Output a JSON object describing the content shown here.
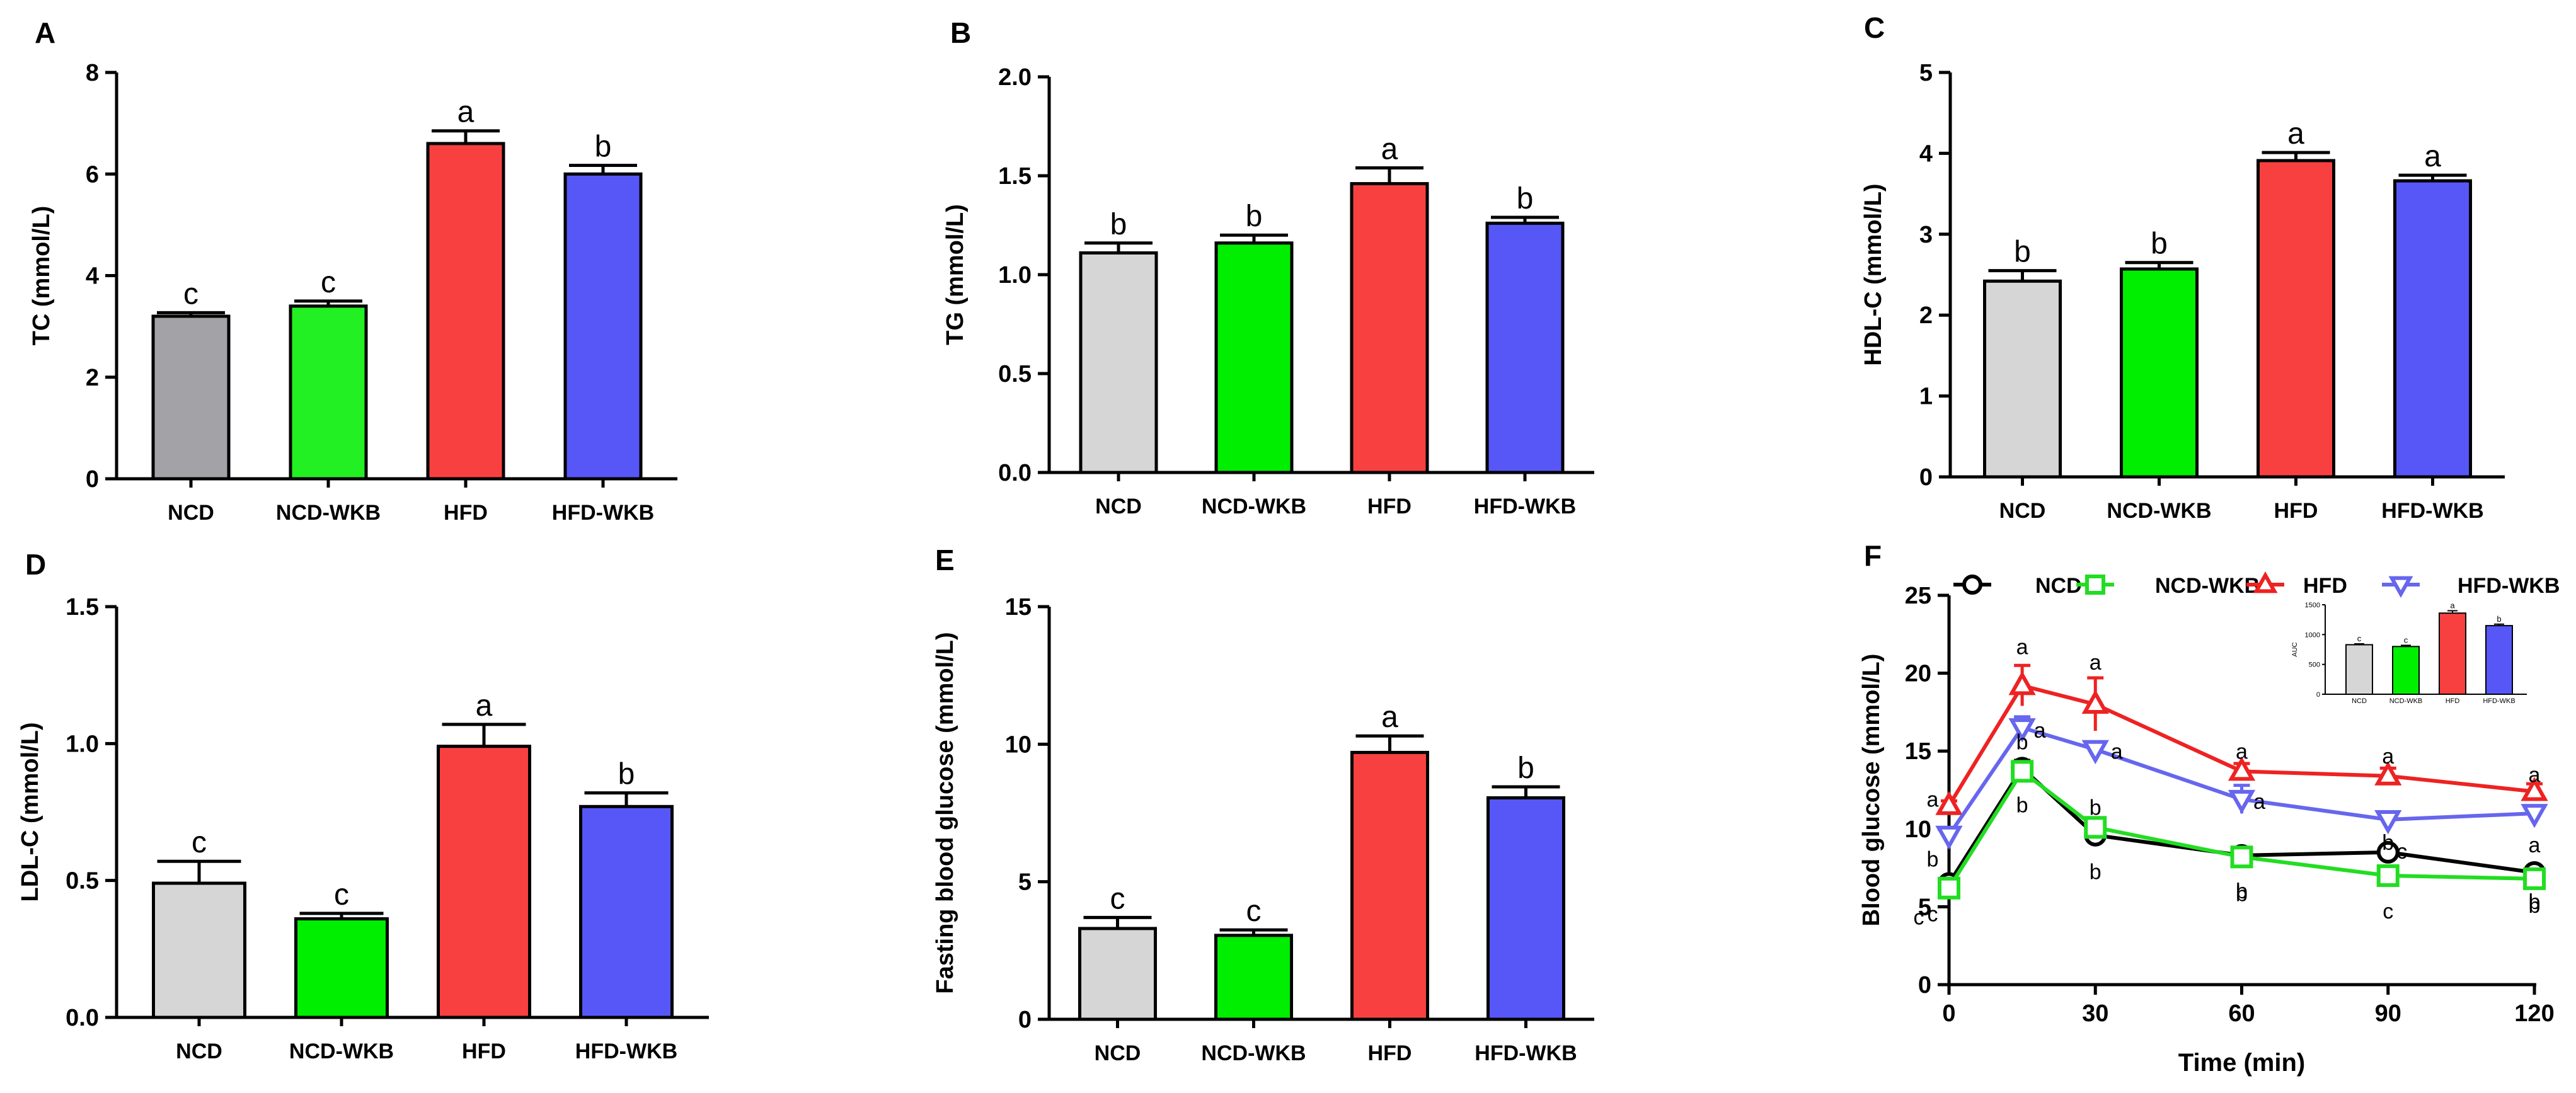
{
  "figure": {
    "panels": [
      "A",
      "B",
      "C",
      "D",
      "E",
      "F"
    ]
  },
  "chart_data": [
    {
      "panel": "A",
      "type": "bar",
      "categories": [
        "NCD",
        "NCD-WKB",
        "HFD",
        "HFD-WKB"
      ],
      "values": [
        3.2,
        3.4,
        6.6,
        6.0
      ],
      "errors": [
        0.07,
        0.1,
        0.25,
        0.17
      ],
      "significance": [
        "c",
        "c",
        "a",
        "b"
      ],
      "colors": [
        "#a3a3a7",
        "#22f022",
        "#f94040",
        "#5757f7"
      ],
      "ylabel": "TC (mmol/L)",
      "xlabel": "",
      "ylim": [
        0,
        8
      ],
      "yticks": [
        "0",
        "2",
        "4",
        "6",
        "8"
      ]
    },
    {
      "panel": "B",
      "type": "bar",
      "categories": [
        "NCD",
        "NCD-WKB",
        "HFD",
        "HFD-WKB"
      ],
      "values": [
        1.11,
        1.16,
        1.46,
        1.26
      ],
      "errors": [
        0.05,
        0.04,
        0.08,
        0.03
      ],
      "significance": [
        "b",
        "b",
        "a",
        "b"
      ],
      "colors": [
        "#d6d6d6",
        "#00ee00",
        "#f94040",
        "#5757f7"
      ],
      "ylabel": "TG (mmol/L)",
      "xlabel": "",
      "ylim": [
        0,
        2.0
      ],
      "yticks": [
        "0.0",
        "0.5",
        "1.0",
        "1.5",
        "2.0"
      ]
    },
    {
      "panel": "C",
      "type": "bar",
      "categories": [
        "NCD",
        "NCD-WKB",
        "HFD",
        "HFD-WKB"
      ],
      "values": [
        2.42,
        2.57,
        3.91,
        3.66
      ],
      "errors": [
        0.13,
        0.08,
        0.1,
        0.07
      ],
      "significance": [
        "b",
        "b",
        "a",
        "a"
      ],
      "colors": [
        "#d6d6d6",
        "#00ee00",
        "#f94040",
        "#5757f7"
      ],
      "ylabel": "HDL-C (mmol/L)",
      "xlabel": "",
      "ylim": [
        0,
        5
      ],
      "yticks": [
        "0",
        "1",
        "2",
        "3",
        "4",
        "5"
      ]
    },
    {
      "panel": "D",
      "type": "bar",
      "categories": [
        "NCD",
        "NCD-WKB",
        "HFD",
        "HFD-WKB"
      ],
      "values": [
        0.49,
        0.36,
        0.99,
        0.77
      ],
      "errors": [
        0.08,
        0.02,
        0.08,
        0.05
      ],
      "significance": [
        "c",
        "c",
        "a",
        "b"
      ],
      "colors": [
        "#d6d6d6",
        "#00ee00",
        "#f94040",
        "#5757f7"
      ],
      "ylabel": "LDL-C (mmol/L)",
      "xlabel": "",
      "ylim": [
        0,
        1.5
      ],
      "yticks": [
        "0.0",
        "0.5",
        "1.0",
        "1.5"
      ]
    },
    {
      "panel": "E",
      "type": "bar",
      "categories": [
        "NCD",
        "NCD-WKB",
        "HFD",
        "HFD-WKB"
      ],
      "values": [
        3.3,
        3.05,
        9.7,
        8.05
      ],
      "errors": [
        0.4,
        0.2,
        0.6,
        0.4
      ],
      "significance": [
        "c",
        "c",
        "a",
        "b"
      ],
      "colors": [
        "#d6d6d6",
        "#00ee00",
        "#f94040",
        "#5757f7"
      ],
      "ylabel": "Fasting blood glucose (mmol/L)",
      "xlabel": "",
      "ylim": [
        0,
        15
      ],
      "yticks": [
        "0",
        "5",
        "10",
        "15"
      ]
    },
    {
      "panel": "F",
      "type": "line",
      "x": [
        0,
        15,
        30,
        60,
        90,
        120
      ],
      "xlabel": "Time (min)",
      "ylabel": "Blood glucose (mmol/L)",
      "xlim": [
        0,
        120
      ],
      "ylim": [
        0,
        25
      ],
      "xticks": [
        "0",
        "30",
        "60",
        "90",
        "120"
      ],
      "yticks": [
        "0",
        "5",
        "10",
        "15",
        "20",
        "25"
      ],
      "legend_position": "top",
      "series": [
        {
          "name": "NCD",
          "marker": "circle",
          "color": "#000000",
          "values": [
            6.5,
            13.9,
            9.6,
            8.3,
            8.5,
            7.2
          ],
          "errors": [
            0.3,
            0.5,
            0.4,
            0.3,
            0.2,
            0.3
          ],
          "labels": [
            "c",
            "b",
            "b",
            "b",
            "c",
            "b"
          ]
        },
        {
          "name": "NCD-WKB",
          "marker": "square",
          "color": "#22dd22",
          "values": [
            6.2,
            13.7,
            10.1,
            8.2,
            7.0,
            6.8
          ],
          "errors": [
            0.3,
            0.4,
            0.3,
            0.3,
            0.2,
            0.2
          ],
          "labels": [
            "c",
            "b",
            "b",
            "b",
            "c",
            "b"
          ]
        },
        {
          "name": "HFD",
          "marker": "triangle-up",
          "color": "#ee2222",
          "values": [
            11.5,
            19.2,
            18.0,
            13.7,
            13.4,
            12.4
          ],
          "errors": [
            0.3,
            1.3,
            1.7,
            0.5,
            0.5,
            0.5
          ],
          "labels": [
            "a",
            "a",
            "a",
            "a",
            "a",
            "a"
          ]
        },
        {
          "name": "HFD-WKB",
          "marker": "triangle-down",
          "color": "#6666ee",
          "values": [
            9.6,
            16.5,
            15.1,
            11.9,
            10.6,
            11.0
          ],
          "errors": [
            0.4,
            0.7,
            0.3,
            0.9,
            0.3,
            0.4
          ],
          "labels": [
            "b",
            "a",
            "a",
            "a",
            "b",
            "a"
          ]
        }
      ],
      "inset": {
        "type": "bar",
        "categories": [
          "NCD",
          "NCD-WKB",
          "HFD",
          "HFD-WKB"
        ],
        "values": [
          830,
          800,
          1360,
          1150
        ],
        "errors": [
          15,
          20,
          40,
          25
        ],
        "significance": [
          "c",
          "c",
          "a",
          "b"
        ],
        "colors": [
          "#d6d6d6",
          "#00ee00",
          "#f94040",
          "#5757f7"
        ],
        "ylabel": "AUC",
        "ylim": [
          0,
          1500
        ],
        "yticks": [
          "0",
          "500",
          "1000",
          "1500"
        ]
      }
    }
  ]
}
